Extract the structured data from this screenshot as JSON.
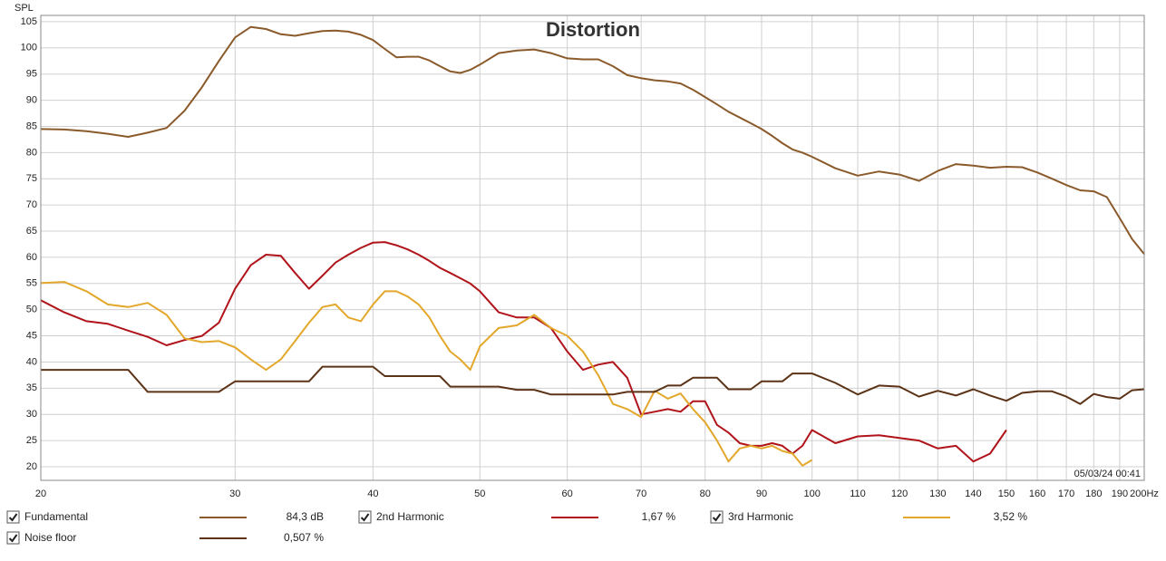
{
  "chart_data": {
    "type": "line",
    "title": "Distortion",
    "y_label": "SPL",
    "timestamp": "05/03/24 00:41",
    "x_scale": "log",
    "grid": true,
    "xlim": [
      20,
      200
    ],
    "ylim": [
      17.4,
      106.2
    ],
    "xticks": [
      20,
      30,
      40,
      50,
      60,
      70,
      80,
      90,
      100,
      110,
      120,
      130,
      140,
      150,
      160,
      170,
      180,
      190,
      {
        "value": 200,
        "label": "200Hz"
      }
    ],
    "yticks": [
      20,
      25,
      30,
      35,
      40,
      45,
      50,
      55,
      60,
      65,
      70,
      75,
      80,
      85,
      90,
      95,
      100,
      105
    ],
    "x": [
      20,
      21,
      22,
      23,
      24,
      25,
      26,
      27,
      28,
      29,
      30,
      31,
      32,
      33,
      34,
      35,
      36,
      37,
      38,
      39,
      40,
      41,
      42,
      43,
      44,
      45,
      46,
      47,
      48,
      49,
      50,
      52,
      54,
      56,
      58,
      60,
      62,
      64,
      66,
      68,
      70,
      72,
      74,
      76,
      78,
      80,
      82,
      84,
      86,
      88,
      90,
      92,
      94,
      96,
      98,
      100,
      105,
      110,
      115,
      120,
      125,
      130,
      135,
      140,
      145,
      150,
      155,
      160,
      165,
      170,
      175,
      180,
      185,
      190,
      195,
      200
    ],
    "series": [
      {
        "name": "Fundamental",
        "color": "#8b5a2b",
        "readout": "84,3 dB",
        "checked": true,
        "values": [
          84.5,
          84.4,
          84.1,
          83.6,
          83,
          83.8,
          84.7,
          88,
          92.5,
          97.5,
          102,
          104,
          103.6,
          102.6,
          102.3,
          102.8,
          103.2,
          103.3,
          103.1,
          102.5,
          101.5,
          99.8,
          98.2,
          98.3,
          98.3,
          97.6,
          96.5,
          95.5,
          95.2,
          95.8,
          96.8,
          99,
          99.5,
          99.7,
          99,
          98,
          97.8,
          97.8,
          96.5,
          94.8,
          94.2,
          93.8,
          93.6,
          93.2,
          92,
          90.6,
          89.2,
          87.8,
          86.7,
          85.6,
          84.5,
          83.2,
          81.8,
          80.6,
          80,
          79.2,
          77,
          75.6,
          76.4,
          75.8,
          74.6,
          76.5,
          77.8,
          77.5,
          77.1,
          77.3,
          77.2,
          76.2,
          75,
          73.8,
          72.8,
          72.6,
          71.5,
          67.5,
          63.5,
          60.6
        ]
      },
      {
        "name": "2nd Harmonic",
        "color": "#b0141a",
        "readout": "1,67 %",
        "checked": true,
        "values": [
          51.8,
          49.5,
          47.8,
          47.3,
          46,
          44.8,
          43.2,
          44.2,
          45,
          47.5,
          54,
          58.5,
          60.5,
          60.3,
          57,
          54,
          56.5,
          59,
          60.5,
          61.8,
          62.8,
          62.9,
          62.3,
          61.5,
          60.5,
          59.3,
          58,
          57,
          56,
          55,
          53.5,
          49.5,
          48.5,
          48.5,
          46.5,
          42,
          38.5,
          39.5,
          40,
          37,
          30,
          30.5,
          31,
          30.5,
          32.5,
          32.5,
          28,
          26.5,
          24.5,
          24,
          24,
          24.5,
          24,
          22.5,
          24,
          27,
          24.5,
          25.8,
          26,
          25.5,
          25,
          23.5,
          24,
          21,
          22.5,
          27,
          null,
          null,
          null,
          null,
          null,
          null,
          null,
          null,
          null,
          null
        ]
      },
      {
        "name": "3rd Harmonic",
        "color": "#e3a82b",
        "readout": "3,52 %",
        "checked": true,
        "values": [
          55.1,
          55.3,
          53.5,
          51,
          50.5,
          51.3,
          49,
          44.5,
          43.8,
          44,
          42.8,
          40.5,
          38.5,
          40.5,
          44,
          47.5,
          50.5,
          51,
          48.5,
          47.8,
          51,
          53.5,
          53.5,
          52.5,
          51,
          48.5,
          45,
          42,
          40.5,
          38.5,
          43,
          46.5,
          47,
          49,
          46.5,
          45,
          42,
          37.5,
          32,
          31,
          29.5,
          34.5,
          33,
          34,
          31,
          28.5,
          25,
          21,
          23.5,
          24,
          23.5,
          24,
          23,
          22.5,
          20.2,
          21.3,
          null,
          null,
          null,
          null,
          null,
          null,
          null,
          null,
          null,
          null,
          null,
          null,
          null,
          null,
          null,
          null,
          null,
          null,
          null,
          null
        ]
      },
      {
        "name": "Noise floor",
        "color": "#5c3317",
        "readout": "0,507 %",
        "checked": true,
        "values": [
          38.5,
          38.5,
          38.5,
          38.5,
          38.5,
          34.3,
          34.3,
          34.3,
          34.3,
          34.3,
          36.3,
          36.3,
          36.3,
          36.3,
          36.3,
          36.3,
          39.1,
          39.1,
          39.1,
          39.1,
          39.1,
          37.3,
          37.3,
          37.3,
          37.3,
          37.3,
          37.3,
          35.3,
          35.3,
          35.3,
          35.3,
          35.3,
          34.7,
          34.7,
          33.8,
          33.8,
          33.8,
          33.8,
          33.8,
          34.3,
          34.3,
          34.3,
          35.5,
          35.5,
          37,
          37,
          37,
          34.8,
          34.8,
          34.8,
          36.3,
          36.3,
          36.3,
          37.8,
          37.8,
          37.8,
          36,
          33.8,
          35.5,
          35.3,
          33.4,
          34.5,
          33.6,
          34.8,
          33.6,
          32.6,
          34.1,
          34.4,
          34.4,
          33.4,
          32,
          33.9,
          33.3,
          33,
          34.6,
          34.8
        ]
      }
    ]
  }
}
